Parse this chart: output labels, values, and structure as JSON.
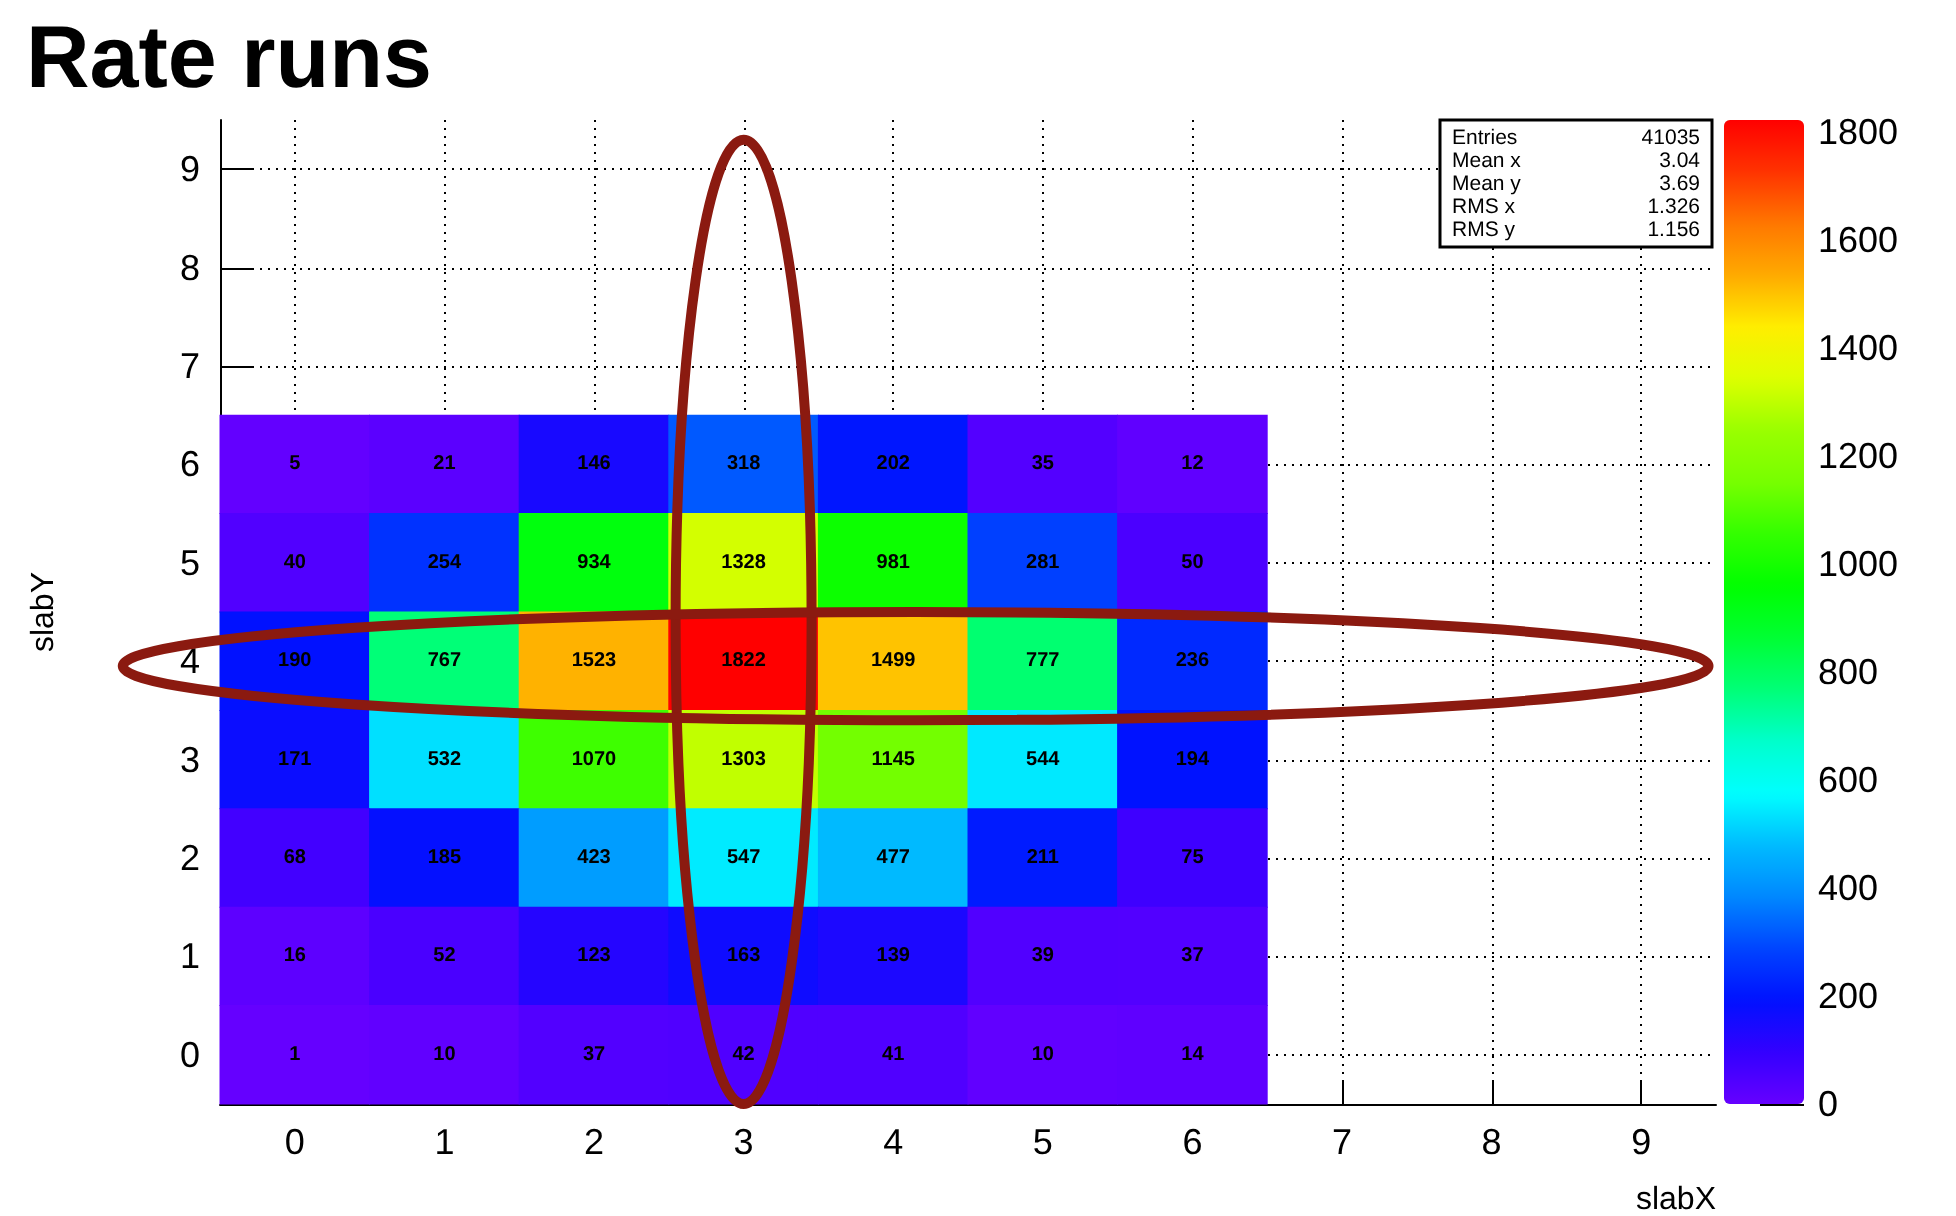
{
  "chart_data": {
    "type": "heatmap",
    "title": "Rate runs",
    "xlabel": "slabX",
    "ylabel": "slabY",
    "categories": [
      "0",
      "1",
      "2",
      "3",
      "4",
      "5",
      "6",
      "7",
      "8",
      "9"
    ],
    "y_categories": [
      "9",
      "8",
      "7",
      "6",
      "5",
      "4",
      "3",
      "2",
      "1",
      "0"
    ],
    "cells": [
      [
        null,
        null,
        null,
        null,
        null,
        null,
        null,
        null,
        null,
        null
      ],
      [
        null,
        null,
        null,
        null,
        null,
        null,
        null,
        null,
        null,
        null
      ],
      [
        null,
        null,
        null,
        null,
        null,
        null,
        null,
        null,
        null,
        null
      ],
      [
        5,
        21,
        146,
        318,
        202,
        35,
        12,
        null,
        null,
        null
      ],
      [
        40,
        254,
        934,
        1328,
        981,
        281,
        50,
        null,
        null,
        null
      ],
      [
        190,
        767,
        1523,
        1822,
        1499,
        777,
        236,
        null,
        null,
        null
      ],
      [
        171,
        532,
        1070,
        1303,
        1145,
        544,
        194,
        null,
        null,
        null
      ],
      [
        68,
        185,
        423,
        547,
        477,
        211,
        75,
        null,
        null,
        null
      ],
      [
        16,
        52,
        123,
        163,
        139,
        39,
        37,
        null,
        null,
        null
      ],
      [
        1,
        10,
        37,
        42,
        41,
        10,
        14,
        null,
        null,
        null
      ]
    ],
    "clim": [
      0,
      1822
    ],
    "cticks": [
      0,
      200,
      400,
      600,
      800,
      1000,
      1200,
      1400,
      1600,
      1800
    ],
    "data_labels": true,
    "grid": true,
    "annotations": [
      "Entries 41035",
      "Mean x 3.04",
      "Mean y 3.69",
      "RMS x 1.326",
      "RMS y 1.156"
    ]
  }
}
